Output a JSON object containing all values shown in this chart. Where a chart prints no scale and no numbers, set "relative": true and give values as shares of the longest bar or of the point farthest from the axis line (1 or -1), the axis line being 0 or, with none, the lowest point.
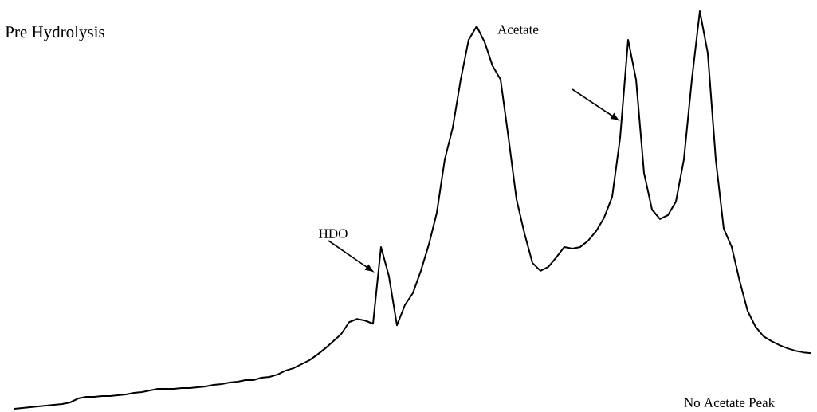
{
  "chart_data": {
    "type": "line",
    "relative": true,
    "title": "Pre Hydrolysis",
    "annotations": [
      "HDO",
      "Acetate",
      "No Acetate Peak"
    ],
    "categories": [
      null,
      null,
      null,
      null,
      null,
      null,
      null,
      null,
      null,
      null,
      null,
      null,
      null,
      null,
      null,
      null,
      null,
      null,
      null,
      null,
      null,
      null,
      null,
      null,
      null,
      null,
      null,
      null,
      null,
      null,
      null,
      null,
      null,
      null,
      null,
      null,
      null,
      null,
      null,
      null,
      null,
      null,
      null,
      null,
      null,
      null,
      null,
      null,
      null,
      null,
      null,
      null,
      null,
      null,
      null,
      null,
      null,
      null,
      null,
      null,
      null,
      null,
      null,
      null,
      null,
      null,
      null,
      null,
      null,
      null,
      null,
      null,
      null,
      null,
      null,
      null,
      null,
      null,
      null,
      null,
      null,
      null,
      null,
      null,
      null,
      null,
      null,
      null,
      null,
      null,
      null,
      null,
      null,
      null,
      null,
      null,
      null,
      null,
      null,
      null,
      null
    ],
    "series": [
      {
        "color": "#000000",
        "values": [
          0,
          0.002,
          0.004,
          0.006,
          0.008,
          0.01,
          0.012,
          0.016,
          0.026,
          0.03,
          0.03,
          0.032,
          0.032,
          0.034,
          0.036,
          0.04,
          0.042,
          0.046,
          0.05,
          0.05,
          0.05,
          0.052,
          0.052,
          0.054,
          0.056,
          0.06,
          0.062,
          0.066,
          0.068,
          0.072,
          0.072,
          0.078,
          0.08,
          0.086,
          0.096,
          0.102,
          0.112,
          0.122,
          0.136,
          0.152,
          0.17,
          0.188,
          0.218,
          0.226,
          0.222,
          0.214,
          0.407,
          0.333,
          0.21,
          0.261,
          0.291,
          0.347,
          0.413,
          0.493,
          0.627,
          0.707,
          0.828,
          0.928,
          0.962,
          0.922,
          0.862,
          0.828,
          0.681,
          0.527,
          0.441,
          0.367,
          0.347,
          0.357,
          0.381,
          0.407,
          0.403,
          0.407,
          0.423,
          0.447,
          0.481,
          0.533,
          0.681,
          0.928,
          0.828,
          0.593,
          0.501,
          0.477,
          0.487,
          0.521,
          0.627,
          0.828,
          1,
          0.894,
          0.627,
          0.453,
          0.407,
          0.321,
          0.246,
          0.206,
          0.182,
          0.17,
          0.16,
          0.152,
          0.146,
          0.142,
          0.14
        ]
      }
    ]
  }
}
